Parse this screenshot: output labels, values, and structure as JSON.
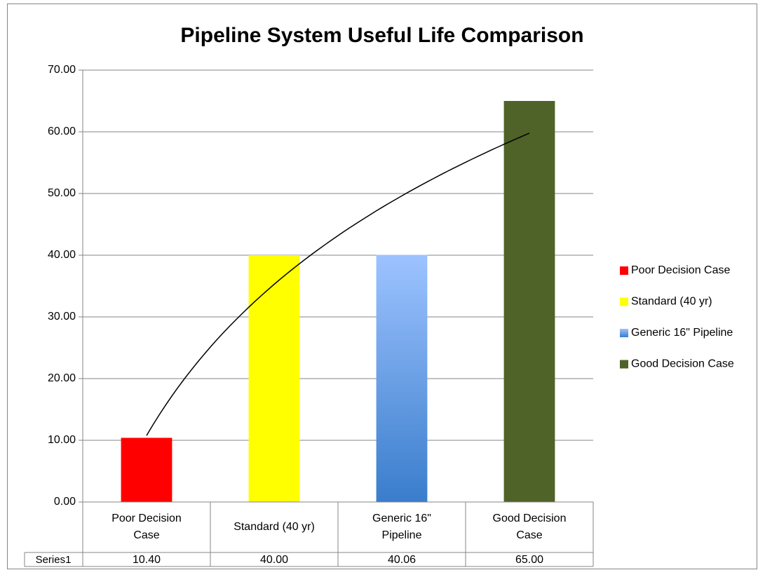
{
  "chart_data": {
    "type": "bar",
    "title": "Pipeline System Useful Life Comparison",
    "categories": [
      "Poor Decision Case",
      "Standard (40 yr)",
      "Generic 16\" Pipeline",
      "Good Decision Case"
    ],
    "series": [
      {
        "name": "Series1",
        "values": [
          10.4,
          40,
          40.06,
          65
        ],
        "value_labels": [
          "10.40",
          "40.00",
          "40.06",
          "65.00"
        ],
        "colors": [
          [
            "#ff0000"
          ],
          [
            "#ffff00"
          ],
          [
            "#9dc3ff",
            "#3a7dcc"
          ],
          [
            "#4f6228"
          ]
        ]
      }
    ],
    "ylim": [
      0,
      70
    ],
    "yticks": [
      {
        "value": 0,
        "label": "0.00"
      },
      {
        "value": 10,
        "label": "10.00"
      },
      {
        "value": 20,
        "label": "20.00"
      },
      {
        "value": 30,
        "label": "30.00"
      },
      {
        "value": 40,
        "label": "40.00"
      },
      {
        "value": 50,
        "label": "50.00"
      },
      {
        "value": 60,
        "label": "60.00"
      },
      {
        "value": 70,
        "label": "70.00"
      }
    ],
    "grid": true,
    "trendline": "logarithmic",
    "trendline_color": "#000000",
    "legend": "right",
    "data_table": true
  }
}
